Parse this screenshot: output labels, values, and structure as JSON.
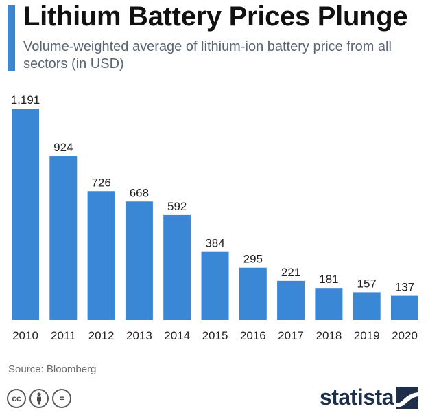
{
  "header": {
    "title": "Lithium Battery Prices Plunge",
    "subtitle": "Volume-weighted average of lithium-ion battery price from all sectors (in USD)"
  },
  "colors": {
    "accent": "#3a87d6",
    "bar": "#3a87d6",
    "brand": "#1d2f4a"
  },
  "chart_data": {
    "type": "bar",
    "title": "Lithium Battery Prices Plunge",
    "subtitle": "Volume-weighted average of lithium-ion battery price from all sectors (in USD)",
    "categories": [
      "2010",
      "2011",
      "2012",
      "2013",
      "2014",
      "2015",
      "2016",
      "2017",
      "2018",
      "2019",
      "2020"
    ],
    "values": [
      1191,
      924,
      726,
      668,
      592,
      384,
      295,
      221,
      181,
      157,
      137
    ],
    "value_labels": [
      "1,191",
      "924",
      "726",
      "668",
      "592",
      "384",
      "295",
      "221",
      "181",
      "157",
      "137"
    ],
    "xlabel": "",
    "ylabel": "",
    "ylim": [
      0,
      1191
    ],
    "grid": false,
    "legend": "none"
  },
  "footer": {
    "source": "Source: Bloomberg",
    "license_icons": [
      "cc-icon",
      "person-icon",
      "equals-icon"
    ],
    "license_glyphs": [
      "cc",
      "",
      "="
    ],
    "brand": "statista"
  }
}
